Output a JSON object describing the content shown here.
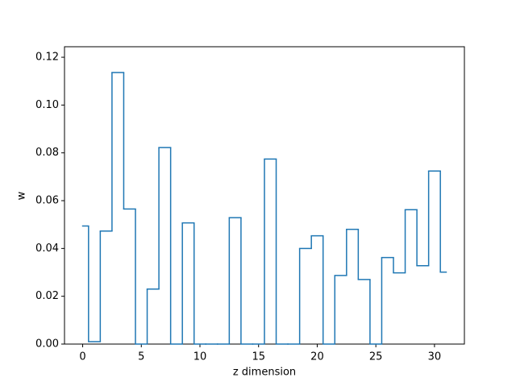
{
  "chart_data": {
    "type": "step",
    "xlabel": "z dimension",
    "ylabel": "w",
    "x": [
      0,
      1,
      2,
      3,
      4,
      5,
      6,
      7,
      8,
      9,
      10,
      11,
      12,
      13,
      14,
      15,
      16,
      17,
      18,
      19,
      20,
      21,
      22,
      23,
      24,
      25,
      26,
      27,
      28,
      29,
      30,
      31
    ],
    "series": [
      {
        "color": "#1f77b4",
        "values": [
          0.0494,
          0.001,
          0.0473,
          0.1136,
          0.0565,
          0,
          0.023,
          0.0822,
          0,
          0.0507,
          0,
          0,
          0,
          0.0529,
          0,
          0,
          0.0774,
          0,
          0,
          0.04,
          0.0453,
          0,
          0.0287,
          0.048,
          0.027,
          0,
          0.0362,
          0.0298,
          0.0562,
          0.0328,
          0.0724,
          0.0301
        ]
      }
    ],
    "xlim": [
      -1.55,
      32.55
    ],
    "xticks": [
      0,
      5,
      10,
      15,
      20,
      25,
      30
    ],
    "ylim": [
      0,
      0.1244
    ],
    "yticks": [
      {
        "value": 0,
        "label": "0.00"
      },
      {
        "value": 0.02,
        "label": "0.02"
      },
      {
        "value": 0.04,
        "label": "0.04"
      },
      {
        "value": 0.06,
        "label": "0.06"
      },
      {
        "value": 0.08,
        "label": "0.08"
      },
      {
        "value": 0.1,
        "label": "0.10"
      },
      {
        "value": 0.12,
        "label": "0.12"
      }
    ]
  }
}
